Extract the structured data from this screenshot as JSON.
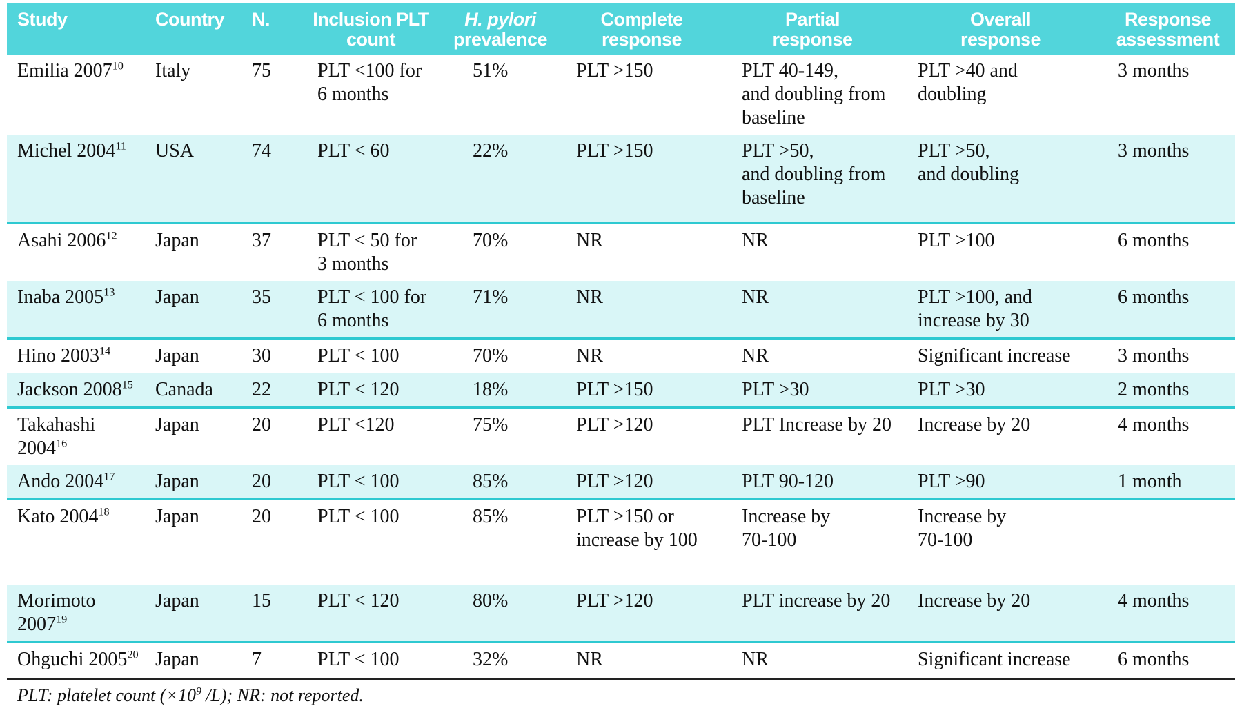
{
  "colors": {
    "header_bg": "#52d5db",
    "row_alt_bg": "#d9f6f7",
    "row_separator": "#2ec9d1",
    "header_text": "#ffffff",
    "body_text": "#111111",
    "bottom_rule": "#222222"
  },
  "table": {
    "columns": [
      {
        "line1": "Study",
        "line2": ""
      },
      {
        "line1": "Country",
        "line2": ""
      },
      {
        "line1": "N.",
        "line2": ""
      },
      {
        "line1": "Inclusion PLT",
        "line2": "count"
      },
      {
        "line1": "H. pylori",
        "line2": "prevalence"
      },
      {
        "line1": "Complete",
        "line2": "response"
      },
      {
        "line1": "Partial",
        "line2": "response"
      },
      {
        "line1": "Overall",
        "line2": "response"
      },
      {
        "line1": "Response",
        "line2": "assessment"
      }
    ],
    "rows": [
      {
        "study": "Emilia 2007",
        "ref": "10",
        "country": "Italy",
        "n": "75",
        "inclusion": "PLT <100 for\n6 months",
        "prevalence": "51%",
        "complete": "PLT >150",
        "partial": "PLT 40-149,\nand doubling from\nbaseline",
        "overall": "PLT >40 and\ndoubling",
        "assessment": "3 months"
      },
      {
        "study": "Michel 2004",
        "ref": "11",
        "country": "USA",
        "n": "74",
        "inclusion": "PLT < 60",
        "prevalence": "22%",
        "complete": "PLT >150",
        "partial": "PLT >50,\nand doubling from\nbaseline",
        "overall": "PLT >50,\nand doubling",
        "assessment": "3 months"
      },
      {
        "study": "Asahi 2006",
        "ref": "12",
        "country": "Japan",
        "n": "37",
        "inclusion": "PLT < 50 for\n3 months",
        "prevalence": "70%",
        "complete": "NR",
        "partial": "NR",
        "overall": "PLT >100",
        "assessment": "6 months"
      },
      {
        "study": "Inaba 2005",
        "ref": "13",
        "country": "Japan",
        "n": "35",
        "inclusion": "PLT < 100 for\n6 months",
        "prevalence": "71%",
        "complete": "NR",
        "partial": "NR",
        "overall": "PLT >100, and\nincrease by 30",
        "assessment": "6 months"
      },
      {
        "study": "Hino 2003",
        "ref": "14",
        "country": "Japan",
        "n": "30",
        "inclusion": "PLT < 100",
        "prevalence": "70%",
        "complete": "NR",
        "partial": "NR",
        "overall": "Significant increase",
        "assessment": "3 months"
      },
      {
        "study": "Jackson 2008",
        "ref": "15",
        "country": "Canada",
        "n": "22",
        "inclusion": "PLT < 120",
        "prevalence": "18%",
        "complete": "PLT >150",
        "partial": "PLT >30",
        "overall": "PLT >30",
        "assessment": "2 months"
      },
      {
        "study": "Takahashi 2004",
        "ref": "16",
        "country": "Japan",
        "n": "20",
        "inclusion": "PLT <120",
        "prevalence": "75%",
        "complete": "PLT >120",
        "partial": "PLT Increase by 20",
        "overall": "Increase by 20",
        "assessment": "4 months"
      },
      {
        "study": "Ando 2004",
        "ref": "17",
        "country": "Japan",
        "n": "20",
        "inclusion": "PLT < 100",
        "prevalence": "85%",
        "complete": "PLT >120",
        "partial": "PLT 90-120",
        "overall": "PLT >90",
        "assessment": "1 month"
      },
      {
        "study": "Kato 2004",
        "ref": "18",
        "country": "Japan",
        "n": "20",
        "inclusion": "PLT < 100",
        "prevalence": "85%",
        "complete": "PLT >150 or\nincrease by 100",
        "partial": "Increase by\n70-100",
        "overall": "Increase by\n70-100",
        "assessment": ""
      },
      {
        "study": "Morimoto 2007",
        "ref": "19",
        "country": "Japan",
        "n": "15",
        "inclusion": "PLT < 120",
        "prevalence": "80%",
        "complete": "PLT >120",
        "partial": "PLT increase by 20",
        "overall": "Increase by 20",
        "assessment": "4 months"
      },
      {
        "study": "Ohguchi 2005",
        "ref": "20",
        "country": "Japan",
        "n": "7",
        "inclusion": "PLT < 100",
        "prevalence": "32%",
        "complete": "NR",
        "partial": "NR",
        "overall": "Significant increase",
        "assessment": "6 months"
      }
    ],
    "footnote": {
      "pre": "PLT: platelet count (×10",
      "sup": "9",
      "post": " /L); NR: not reported."
    }
  }
}
